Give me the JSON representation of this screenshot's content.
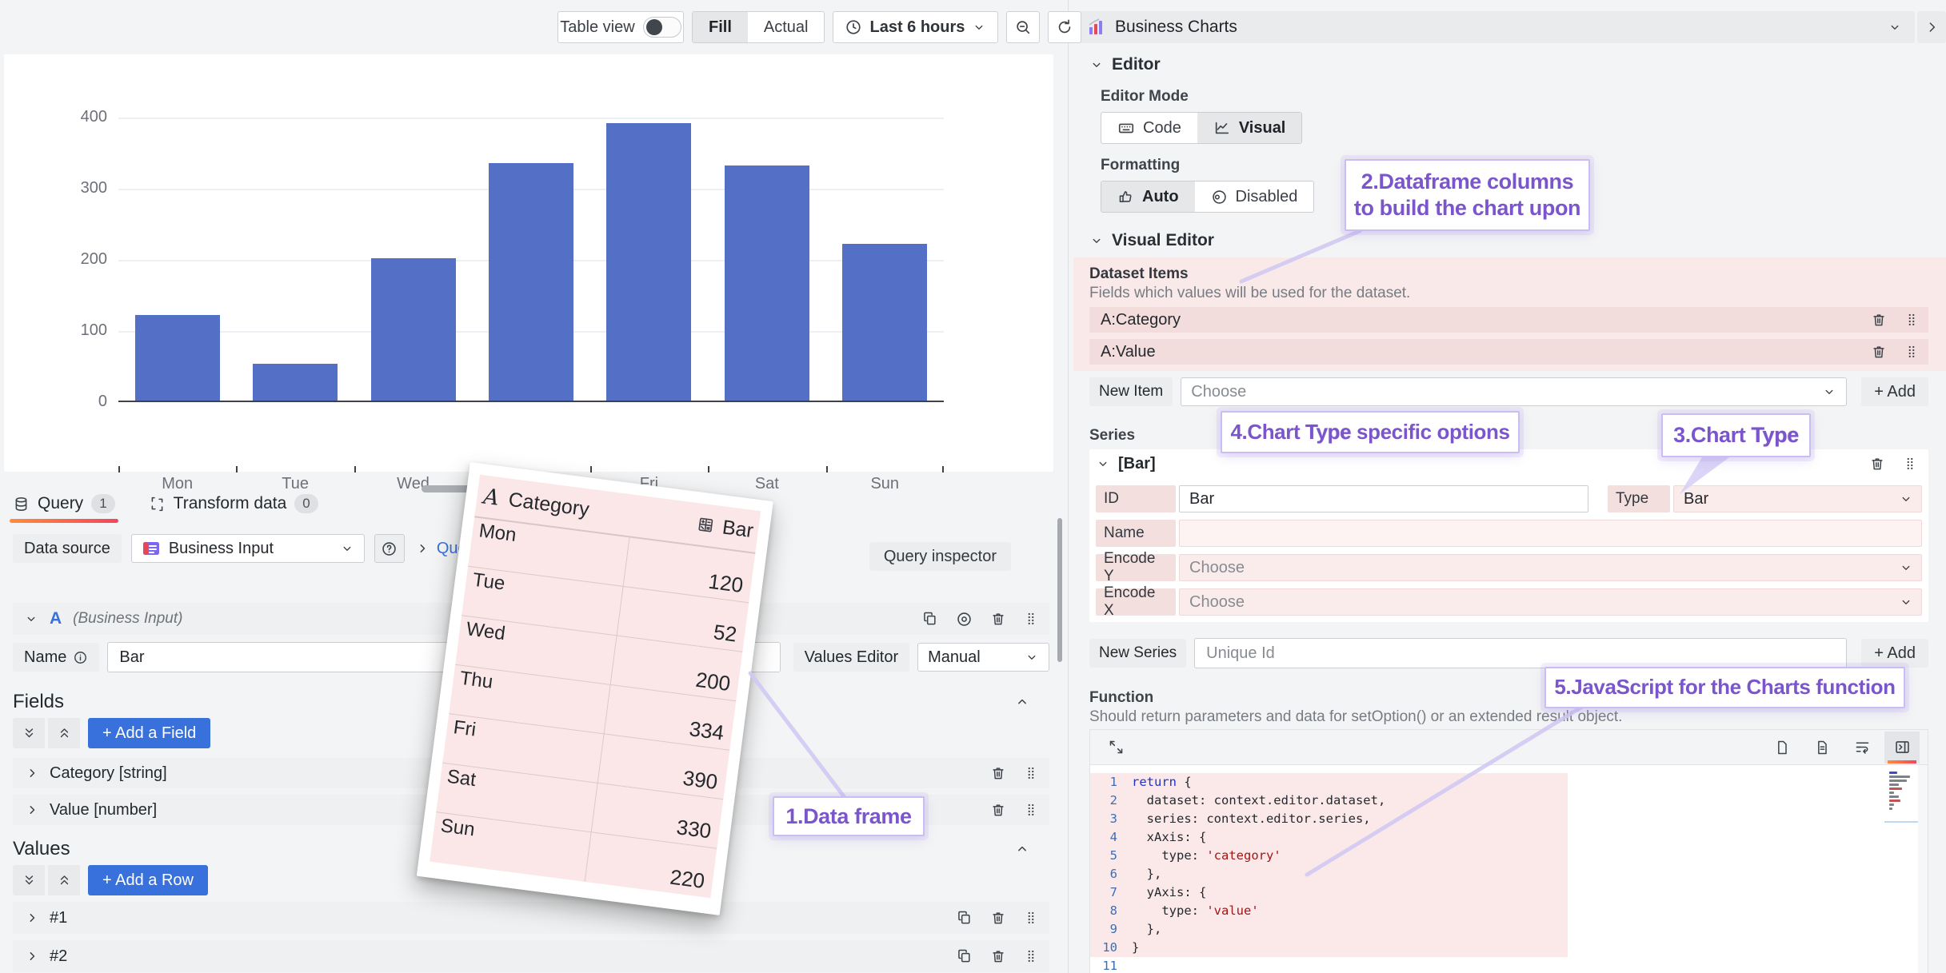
{
  "toolbar": {
    "table_view_label": "Table view",
    "fill_label": "Fill",
    "actual_label": "Actual",
    "time_range_label": "Last 6 hours"
  },
  "panel": {
    "title": "Business Charts"
  },
  "chart_data": {
    "type": "bar",
    "categories": [
      "Mon",
      "Tue",
      "Wed",
      "Thu",
      "Fri",
      "Sat",
      "Sun"
    ],
    "values": [
      120,
      52,
      200,
      334,
      390,
      330,
      220
    ],
    "series_name": "Bar",
    "title": "",
    "xlabel": "",
    "ylabel": "",
    "ylim": [
      0,
      400
    ],
    "yticks": [
      0,
      100,
      200,
      300,
      400
    ],
    "bar_color": "#5470C6",
    "grid": true,
    "legend": false
  },
  "query": {
    "tabs": [
      {
        "label": "Query",
        "count": "1"
      },
      {
        "label": "Transform data",
        "count": "0"
      }
    ],
    "datasource_label": "Data source",
    "datasource_value": "Business Input",
    "query_options_label": "Query options",
    "query_inspector_label": "Query inspector",
    "row_letter": "A",
    "row_source": "(Business Input)",
    "name_label": "Name",
    "name_value": "Bar",
    "values_editor_label": "Values Editor",
    "values_editor_value": "Manual",
    "fields_title": "Fields",
    "add_field_label": "+ Add a Field",
    "fields": [
      "Category [string]",
      "Value [number]"
    ],
    "values_title": "Values",
    "add_row_label": "+ Add a Row",
    "value_rows": [
      "#1",
      "#2"
    ]
  },
  "options": {
    "editor_title": "Editor",
    "editor_mode_label": "Editor Mode",
    "mode_code": "Code",
    "mode_visual": "Visual",
    "formatting_label": "Formatting",
    "formatting_auto": "Auto",
    "formatting_disabled": "Disabled",
    "visual_editor_title": "Visual Editor",
    "dataset_title": "Dataset Items",
    "dataset_desc": "Fields which values will be used for the dataset.",
    "dataset_items": [
      "A:Category",
      "A:Value"
    ],
    "new_item_label": "New Item",
    "choose_placeholder": "Choose",
    "add_label": "+ Add",
    "series_label": "Series",
    "series_group_label": "[Bar]",
    "id_label": "ID",
    "id_value": "Bar",
    "type_label": "Type",
    "type_value": "Bar",
    "series_name_label": "Name",
    "encode_y_label": "Encode Y",
    "encode_x_label": "Encode X",
    "new_series_label": "New Series",
    "new_series_placeholder": "Unique Id",
    "function_label": "Function",
    "function_desc": "Should return parameters and data for setOption() or an extended result object.",
    "code_lines": [
      "return {",
      "  dataset: context.editor.dataset,",
      "  series: context.editor.series,",
      "  xAxis: {",
      "    type: 'category'",
      "  },",
      "  yAxis: {",
      "    type: 'value'",
      "  },",
      "}",
      ""
    ]
  },
  "dataframe_card": {
    "col_category": "Category",
    "col_value": "Bar",
    "rows": [
      {
        "category": "Mon",
        "value": "120"
      },
      {
        "category": "Tue",
        "value": "52"
      },
      {
        "category": "Wed",
        "value": "200"
      },
      {
        "category": "Thu",
        "value": "334"
      },
      {
        "category": "Fri",
        "value": "390"
      },
      {
        "category": "Sat",
        "value": "330"
      },
      {
        "category": "Sun",
        "value": "220"
      }
    ]
  },
  "annotations": [
    {
      "id": 1,
      "lines": [
        [
          {
            "t": "1.Data frame"
          }
        ]
      ]
    },
    {
      "id": 2,
      "lines": [
        [
          {
            "t": "2.Dataframe columns"
          }
        ],
        [
          {
            "t": "to build the chart upon"
          }
        ]
      ]
    },
    {
      "id": 3,
      "lines": [
        [
          {
            "t": "3.Chart "
          },
          {
            "t": "Type",
            "b": true
          }
        ]
      ]
    },
    {
      "id": 4,
      "lines": [
        [
          {
            "t": "4.Chart "
          },
          {
            "t": "Type",
            "b": true
          },
          {
            "t": " specific options"
          }
        ]
      ]
    },
    {
      "id": 5,
      "lines": [
        [
          {
            "t": "5.JavaScript for the Charts function"
          }
        ]
      ]
    }
  ],
  "colors": {
    "accent_blue": "#3871DC",
    "bar_blue": "#5470C6",
    "annotation_purple": "#7A55CB",
    "highlight_pink": "#FAE9E9",
    "tab_gradient_start": "#FF8C3A",
    "tab_gradient_end": "#F5455C"
  }
}
